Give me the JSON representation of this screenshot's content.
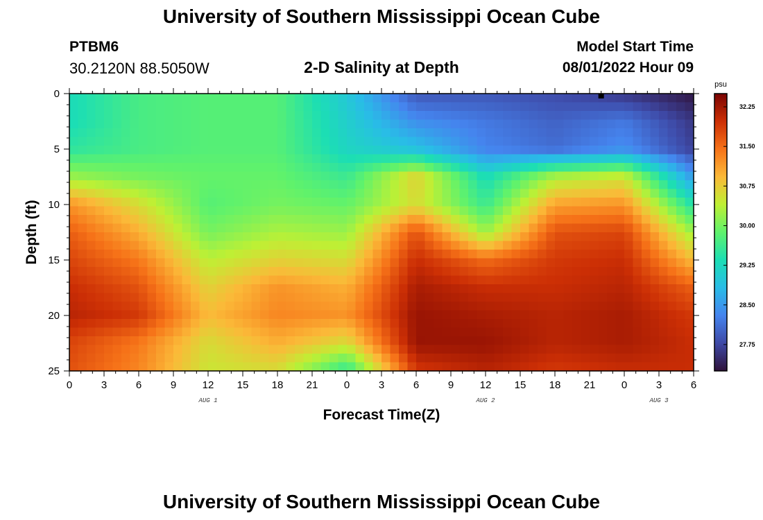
{
  "header": {
    "title": "University of Southern Mississippi Ocean Cube",
    "station_id": "PTBM6",
    "coords": "30.2120N  88.5050W",
    "chart_title": "2-D Salinity at Depth",
    "start_label": "Model Start Time",
    "start_value": "08/01/2022 Hour 09"
  },
  "footer": {
    "title": "University of Southern Mississippi Ocean Cube"
  },
  "chart_data": {
    "type": "heatmap",
    "title": "2-D Salinity at Depth",
    "xlabel": "Forecast Time(Z)",
    "ylabel": "Depth (ft)",
    "x_range": [
      0,
      54
    ],
    "y_range": [
      0,
      25
    ],
    "y_inverted": true,
    "x_ticks": [
      0,
      3,
      6,
      9,
      12,
      15,
      18,
      21,
      24,
      27,
      30,
      33,
      36,
      39,
      42,
      45,
      48,
      51,
      54
    ],
    "x_tick_labels": [
      "0",
      "3",
      "6",
      "9",
      "12",
      "15",
      "18",
      "21",
      "0",
      "3",
      "6",
      "9",
      "12",
      "15",
      "18",
      "21",
      "0",
      "3",
      "6"
    ],
    "y_ticks": [
      0,
      5,
      10,
      15,
      20,
      25
    ],
    "y_tick_labels": [
      "0",
      "5",
      "10",
      "15",
      "20",
      "25"
    ],
    "date_labels": [
      {
        "x": 12,
        "label": "AUG 1"
      },
      {
        "x": 36,
        "label": "AUG 2"
      },
      {
        "x": 51,
        "label": "AUG 3"
      }
    ],
    "colorbar": {
      "unit": "psu",
      "min": 27.25,
      "max": 32.5,
      "ticks": [
        27.75,
        28.5,
        29.25,
        30.0,
        30.75,
        31.5,
        32.25
      ],
      "tick_labels": [
        "27.75",
        "28.50",
        "29.25",
        "30.00",
        "30.75",
        "31.50",
        "32.25"
      ]
    },
    "depths": [
      0,
      2.5,
      5,
      7.5,
      10,
      12.5,
      15,
      17.5,
      20,
      22.5,
      25
    ],
    "times": [
      0,
      6,
      12,
      18,
      24,
      30,
      36,
      42,
      48,
      54
    ],
    "salinity": [
      [
        29.3,
        29.7,
        29.8,
        29.8,
        29.0,
        27.9,
        27.9,
        27.8,
        27.6,
        27.3
      ],
      [
        29.3,
        29.7,
        29.8,
        29.8,
        29.1,
        28.4,
        28.2,
        28.0,
        28.2,
        27.6
      ],
      [
        29.5,
        29.7,
        29.8,
        29.8,
        29.2,
        28.9,
        28.3,
        28.1,
        28.4,
        27.7
      ],
      [
        30.2,
        30.0,
        29.9,
        29.9,
        29.6,
        30.7,
        29.3,
        30.3,
        30.5,
        28.5
      ],
      [
        31.2,
        30.6,
        29.8,
        30.0,
        29.9,
        30.6,
        29.6,
        31.1,
        31.2,
        29.4
      ],
      [
        31.6,
        31.0,
        30.0,
        30.3,
        30.2,
        31.7,
        30.2,
        31.7,
        31.8,
        30.2
      ],
      [
        31.8,
        31.4,
        30.4,
        30.7,
        30.6,
        32.0,
        31.5,
        31.9,
        32.0,
        30.9
      ],
      [
        32.0,
        31.7,
        30.7,
        31.2,
        31.0,
        32.2,
        32.0,
        32.0,
        32.1,
        31.6
      ],
      [
        32.1,
        31.9,
        30.9,
        31.3,
        31.2,
        32.3,
        32.2,
        32.1,
        32.2,
        31.9
      ],
      [
        31.8,
        31.4,
        30.6,
        31.0,
        30.6,
        32.3,
        32.3,
        32.1,
        32.2,
        32.0
      ],
      [
        31.7,
        31.3,
        30.5,
        30.6,
        29.5,
        31.9,
        32.1,
        31.9,
        32.0,
        32.0
      ]
    ]
  }
}
